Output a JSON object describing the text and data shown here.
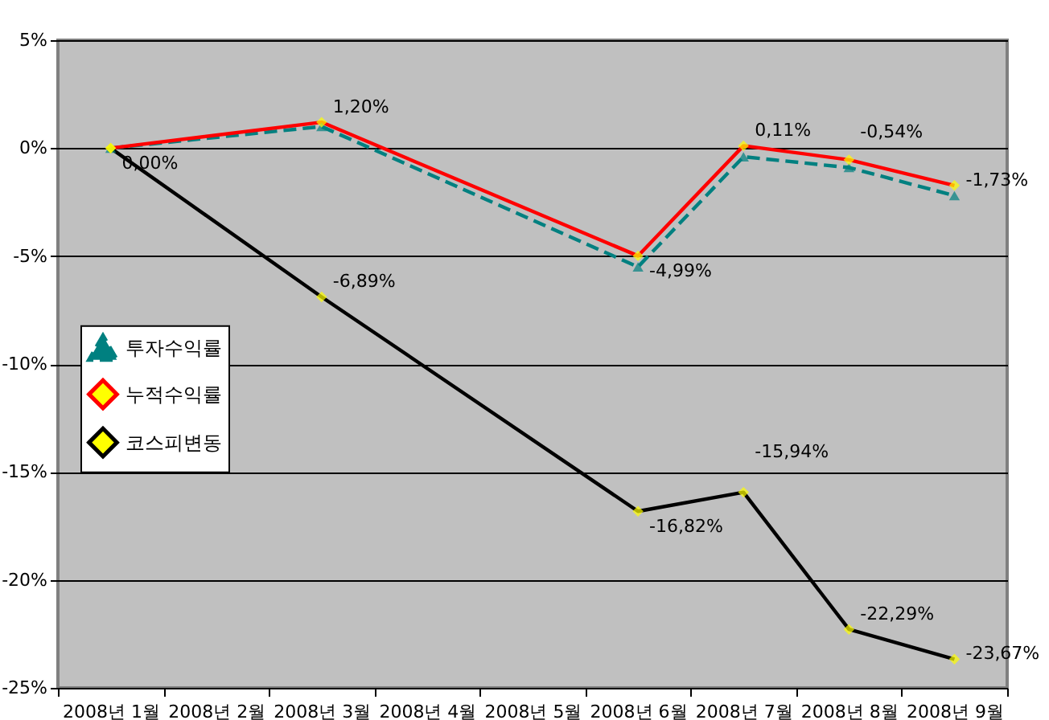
{
  "chart_data": {
    "type": "line",
    "categories": [
      "2008년 1월",
      "2008년 2월",
      "2008년 3월",
      "2008년 4월",
      "2008년 5월",
      "2008년 6월",
      "2008년 7월",
      "2008년 8월",
      "2008년 9월"
    ],
    "series": [
      {
        "name": "투자수익률",
        "color": "#008080",
        "marker": "triangle",
        "line_style": "dashed",
        "values": [
          0,
          null,
          1.0,
          null,
          null,
          -5.5,
          -0.4,
          -0.9,
          -2.2
        ]
      },
      {
        "name": "누적수익률",
        "color": "#ff0000",
        "marker": "diamond",
        "line_style": "solid",
        "values": [
          0,
          null,
          1.2,
          null,
          null,
          -4.99,
          0.11,
          -0.54,
          -1.73
        ],
        "value_labels": [
          "0,00%",
          null,
          "1,20%",
          null,
          null,
          "-4,99%",
          "0,11%",
          "-0,54%",
          "-1,73%"
        ]
      },
      {
        "name": "코스피변동",
        "color": "#000000",
        "marker": "diamond",
        "line_style": "solid",
        "values": [
          0,
          null,
          -6.89,
          null,
          null,
          -16.82,
          -15.94,
          -22.29,
          -23.67
        ],
        "value_labels": [
          null,
          null,
          "-6,89%",
          null,
          null,
          "-16,82%",
          "-15,94%",
          "-22,29%",
          "-23,67%"
        ]
      }
    ],
    "ylim": [
      -25,
      5
    ],
    "yticks": [
      {
        "value": 5,
        "label": "5%"
      },
      {
        "value": 0,
        "label": "0%"
      },
      {
        "value": -5,
        "label": "-5%"
      },
      {
        "value": -10,
        "label": "-10%"
      },
      {
        "value": -15,
        "label": "-15%"
      },
      {
        "value": -20,
        "label": "-20%"
      },
      {
        "value": -25,
        "label": "-25%"
      }
    ],
    "grid": "y",
    "legend": "left"
  }
}
